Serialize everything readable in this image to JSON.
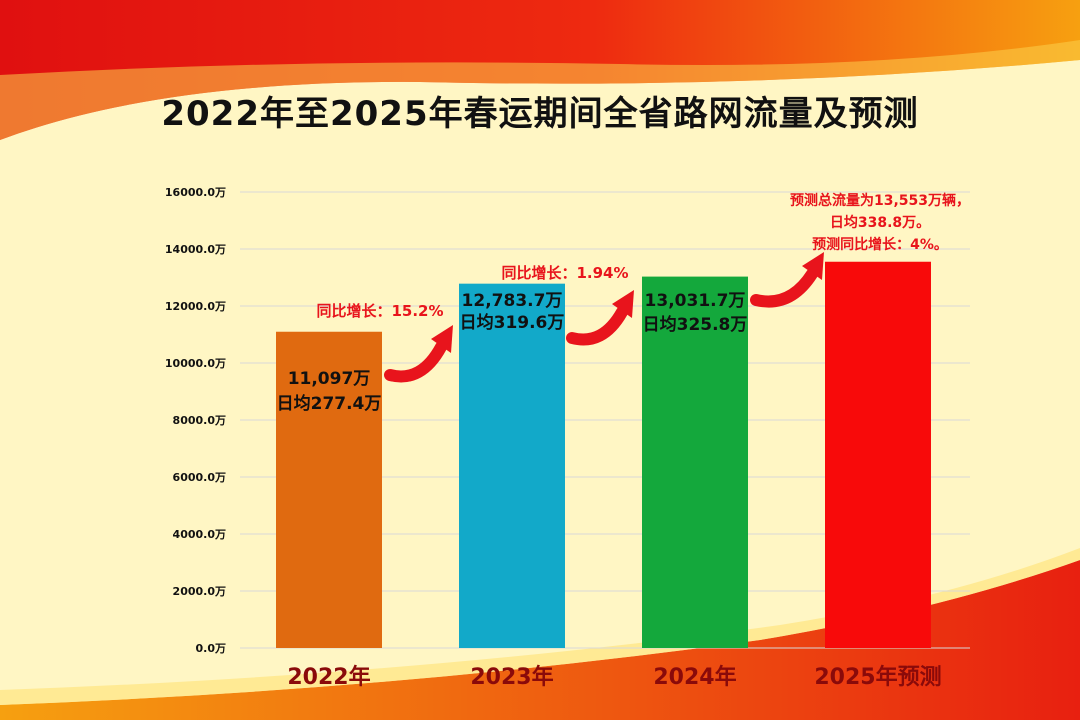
{
  "title": "2022年至2025年春运期间全省路网流量及预测",
  "colors": {
    "bars": [
      "#e06a10",
      "#12a9c9",
      "#14a83c",
      "#f80a0a"
    ],
    "annotation": "#e8141c",
    "xtick": "#8a0a0a"
  },
  "chart_data": {
    "type": "bar",
    "title": "2022年至2025年春运期间全省路网流量及预测",
    "categories": [
      "2022年",
      "2023年",
      "2024年",
      "2025年预测"
    ],
    "values": [
      11097,
      12783.7,
      13031.7,
      13553
    ],
    "ylim": [
      0,
      16000
    ],
    "yticks": [
      0,
      2000,
      4000,
      6000,
      8000,
      10000,
      12000,
      14000,
      16000
    ],
    "ytick_labels": [
      "0.0万",
      "2000.0万",
      "4000.0万",
      "6000.0万",
      "8000.0万",
      "10000.0万",
      "12000.0万",
      "14000.0万",
      "16000.0万"
    ],
    "grid": true,
    "legend": "none",
    "bar_labels": [
      [
        "11,097万",
        "日均277.4万"
      ],
      [
        "12,783.7万",
        "日均319.6万"
      ],
      [
        "13,031.7万",
        "日均325.8万"
      ],
      []
    ],
    "annotations": [
      [
        "同比增长：15.2%"
      ],
      [
        "同比增长：1.94%"
      ],
      [
        "预测总流量为13,553万辆，",
        "日均338.8万。",
        "预测同比增长：4%。"
      ]
    ]
  }
}
